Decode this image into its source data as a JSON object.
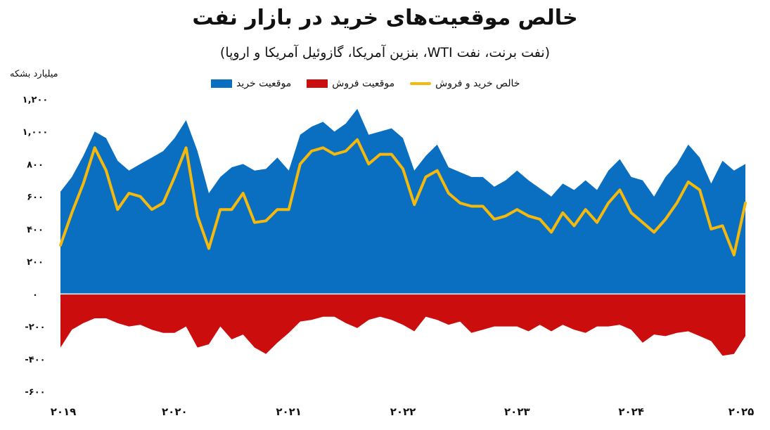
{
  "chart_data": {
    "type": "area",
    "title": "خالص موقعیت‌های خرید در بازار نفت",
    "subtitle": "(نفت برنت، نفت WTI، بنزین آمریکا، گازوئیل آمریکا و اروپا)",
    "ylabel": "میلیارد بشکه",
    "ylim": [
      -600,
      1200
    ],
    "yticks": [
      {
        "value": 1200,
        "label": "۱,۲۰۰"
      },
      {
        "value": 1000,
        "label": "۱,۰۰۰"
      },
      {
        "value": 800,
        "label": "۸۰۰"
      },
      {
        "value": 600,
        "label": "۶۰۰"
      },
      {
        "value": 400,
        "label": "۴۰۰"
      },
      {
        "value": 200,
        "label": "۲۰۰"
      },
      {
        "value": 0,
        "label": "۰"
      },
      {
        "value": -200,
        "label": "-۲۰۰"
      },
      {
        "value": -400,
        "label": "-۴۰۰"
      },
      {
        "value": -600,
        "label": "-۶۰۰"
      }
    ],
    "xlim": [
      2019.0,
      2025.0
    ],
    "xticks": [
      {
        "value": 2019,
        "label": "۲۰۱۹"
      },
      {
        "value": 2020,
        "label": "۲۰۲۰"
      },
      {
        "value": 2021,
        "label": "۲۰۲۱"
      },
      {
        "value": 2022,
        "label": "۲۰۲۲"
      },
      {
        "value": 2023,
        "label": "۲۰۲۳"
      },
      {
        "value": 2024,
        "label": "۲۰۲۴"
      },
      {
        "value": 2025,
        "label": "۲۰۲۵"
      }
    ],
    "grid": false,
    "legend_position": "top",
    "x": [
      2019.0,
      2019.1,
      2019.2,
      2019.3,
      2019.4,
      2019.5,
      2019.6,
      2019.7,
      2019.8,
      2019.9,
      2020.0,
      2020.1,
      2020.2,
      2020.3,
      2020.4,
      2020.5,
      2020.6,
      2020.7,
      2020.8,
      2020.9,
      2021.0,
      2021.1,
      2021.2,
      2021.3,
      2021.4,
      2021.5,
      2021.6,
      2021.7,
      2021.8,
      2021.9,
      2022.0,
      2022.1,
      2022.2,
      2022.3,
      2022.4,
      2022.5,
      2022.6,
      2022.7,
      2022.8,
      2022.9,
      2023.0,
      2023.1,
      2023.2,
      2023.3,
      2023.4,
      2023.5,
      2023.6,
      2023.7,
      2023.8,
      2023.9,
      2024.0,
      2024.1,
      2024.2,
      2024.3,
      2024.4,
      2024.5,
      2024.6,
      2024.7,
      2024.8,
      2024.9,
      2025.0
    ],
    "series": [
      {
        "name": "موقعیت خرید",
        "color": "#0b6fc1",
        "values": [
          630,
          720,
          850,
          1000,
          960,
          820,
          760,
          800,
          840,
          880,
          960,
          1070,
          880,
          620,
          720,
          780,
          800,
          760,
          770,
          840,
          760,
          980,
          1030,
          1060,
          1000,
          1050,
          1140,
          980,
          1000,
          1020,
          960,
          760,
          850,
          920,
          780,
          750,
          720,
          720,
          660,
          700,
          760,
          700,
          650,
          600,
          680,
          640,
          700,
          640,
          760,
          830,
          720,
          700,
          600,
          720,
          800,
          920,
          840,
          680,
          820,
          760,
          800
        ]
      },
      {
        "name": "موقعیت فروش",
        "color": "#cc0d0d",
        "values": [
          -330,
          -220,
          -180,
          -150,
          -150,
          -180,
          -200,
          -190,
          -220,
          -240,
          -240,
          -200,
          -330,
          -310,
          -200,
          -280,
          -250,
          -330,
          -370,
          -300,
          -240,
          -170,
          -160,
          -140,
          -140,
          -180,
          -210,
          -160,
          -140,
          -160,
          -190,
          -230,
          -140,
          -160,
          -190,
          -170,
          -240,
          -220,
          -200,
          -200,
          -200,
          -230,
          -190,
          -230,
          -190,
          -220,
          -240,
          -200,
          -200,
          -190,
          -220,
          -300,
          -250,
          -260,
          -240,
          -230,
          -260,
          -290,
          -380,
          -370,
          -260
        ]
      },
      {
        "name": "خالص خرید و فروش",
        "color": "#f5b90c",
        "values": [
          300,
          500,
          680,
          900,
          760,
          520,
          620,
          600,
          520,
          560,
          720,
          900,
          480,
          280,
          520,
          520,
          620,
          440,
          450,
          520,
          520,
          800,
          880,
          900,
          860,
          880,
          950,
          800,
          860,
          860,
          770,
          550,
          720,
          760,
          620,
          560,
          540,
          540,
          460,
          480,
          520,
          480,
          460,
          380,
          500,
          420,
          520,
          440,
          560,
          640,
          500,
          440,
          380,
          460,
          560,
          690,
          640,
          400,
          420,
          240,
          560
        ]
      }
    ]
  }
}
